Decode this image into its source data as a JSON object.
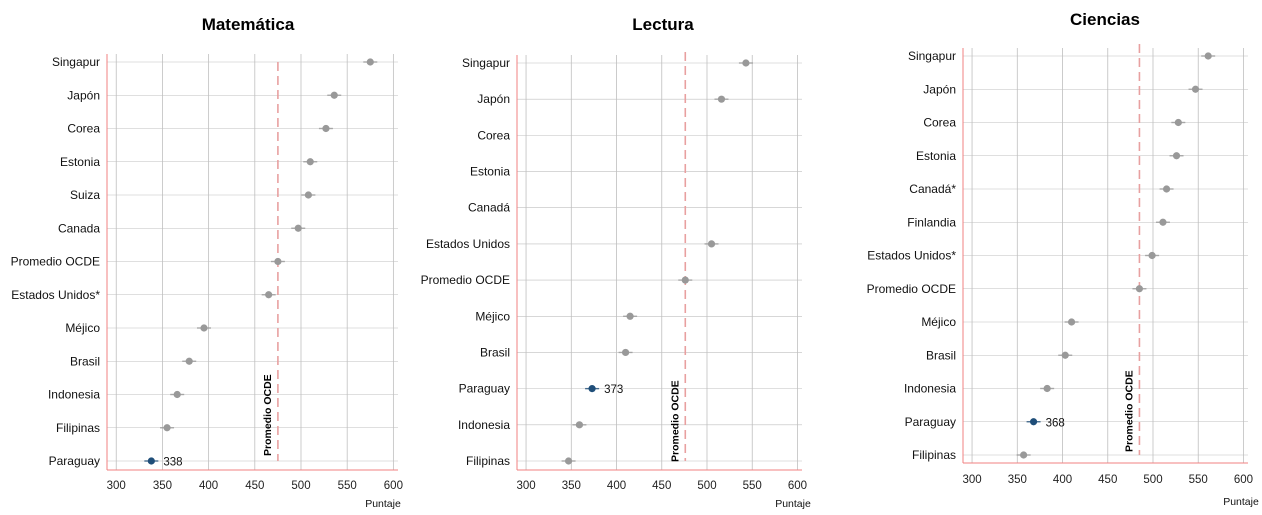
{
  "chart_data": [
    {
      "type": "scatter",
      "title": "Matemática",
      "xlabel": "Puntaje",
      "xlim": [
        290,
        605
      ],
      "xticks": [
        300,
        350,
        400,
        450,
        500,
        550,
        600
      ],
      "reference": {
        "label": "Promedio OCDE",
        "value": 475
      },
      "categories": [
        "Singapur",
        "Japón",
        "Corea",
        "Estonia",
        "Suiza",
        "Canada",
        "Promedio OCDE",
        "Estados Unidos*",
        "Méjico",
        "Brasil",
        "Indonesia",
        "Filipinas",
        "Paraguay"
      ],
      "values": [
        575,
        536,
        527,
        510,
        508,
        497,
        475,
        465,
        395,
        379,
        366,
        355,
        338
      ],
      "highlight": {
        "category": "Paraguay",
        "value": 338,
        "label": "338",
        "color": "#1f4e79"
      }
    },
    {
      "type": "scatter",
      "title": "Lectura",
      "xlabel": "Puntaje",
      "xlim": [
        290,
        605
      ],
      "xticks": [
        300,
        350,
        400,
        450,
        500,
        550,
        600
      ],
      "reference": {
        "label": "Promedio OCDE",
        "value": 476
      },
      "categories": [
        "Singapur",
        "Japón",
        "Corea",
        "Estonia",
        "Canadá",
        "Estados Unidos",
        "Promedio OCDE",
        "Méjico",
        "Brasil",
        "Paraguay",
        "Indonesia",
        "Filipinas"
      ],
      "values": [
        543,
        516,
        null,
        null,
        null,
        505,
        476,
        415,
        410,
        373,
        359,
        347
      ],
      "highlight": {
        "category": "Paraguay",
        "value": 373,
        "label": "373",
        "color": "#1f4e79"
      }
    },
    {
      "type": "scatter",
      "title": "Ciencias",
      "xlabel": "Puntaje",
      "xlim": [
        290,
        605
      ],
      "xticks": [
        300,
        350,
        400,
        450,
        500,
        550,
        600
      ],
      "reference": {
        "label": "Promedio OCDE",
        "value": 485
      },
      "categories": [
        "Singapur",
        "Japón",
        "Corea",
        "Estonia",
        "Canadá*",
        "Finlandia",
        "Estados Unidos*",
        "Promedio OCDE",
        "Méjico",
        "Brasil",
        "Indonesia",
        "Paraguay",
        "Filipinas"
      ],
      "values": [
        561,
        547,
        528,
        526,
        515,
        511,
        499,
        485,
        410,
        403,
        383,
        368,
        357
      ],
      "highlight": {
        "category": "Paraguay",
        "value": 368,
        "label": "368",
        "color": "#1f4e79"
      }
    }
  ],
  "colors": {
    "point": "#999999",
    "highlight": "#1f4e79",
    "reference_line": "#e8a0a0",
    "axis_line": "#f08080",
    "grid": "#bfbfbf"
  }
}
